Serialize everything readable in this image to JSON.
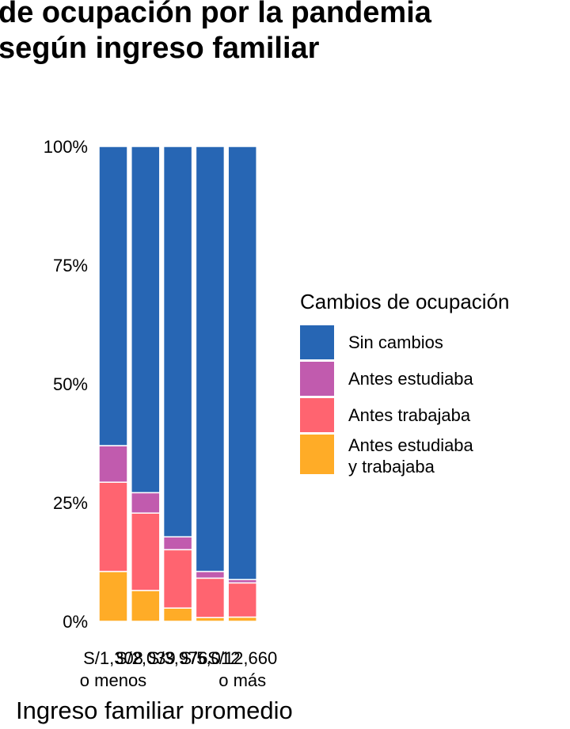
{
  "title_lines": [
    "de ocupación por la pandemia",
    "según ingreso familiar"
  ],
  "colors": {
    "sin_cambios": "#2766B4",
    "antes_estudiaba": "#C15BAE",
    "antes_trabajaba": "#FF6470",
    "antes_estudiaba_y_trabajaba": "#FFAC27"
  },
  "chart_data": {
    "type": "bar",
    "stacked": true,
    "normalized": true,
    "title": "de ocupación por la pandemia según ingreso familiar",
    "xlabel": "Ingreso familiar promedio",
    "ylabel": "",
    "ylim": [
      0,
      1
    ],
    "y_ticks": [
      "0%",
      "25%",
      "50%",
      "75%",
      "100%"
    ],
    "categories": [
      "S/1,308\no menos",
      "S/2,039",
      "S/3,976",
      "S/5,012",
      "S/12,660\no más"
    ],
    "legend_title": "Cambios de ocupación",
    "legend_position": "right",
    "grid": false,
    "series": [
      {
        "name": "Antes estudiaba\ny trabajaba",
        "values": [
          0.105,
          0.065,
          0.028,
          0.008,
          0.009
        ]
      },
      {
        "name": "Antes trabajaba",
        "values": [
          0.188,
          0.163,
          0.123,
          0.083,
          0.072
        ]
      },
      {
        "name": "Antes estudiaba",
        "values": [
          0.077,
          0.043,
          0.027,
          0.014,
          0.007
        ]
      },
      {
        "name": "Sin cambios",
        "values": [
          0.63,
          0.729,
          0.822,
          0.895,
          0.912
        ]
      }
    ]
  }
}
